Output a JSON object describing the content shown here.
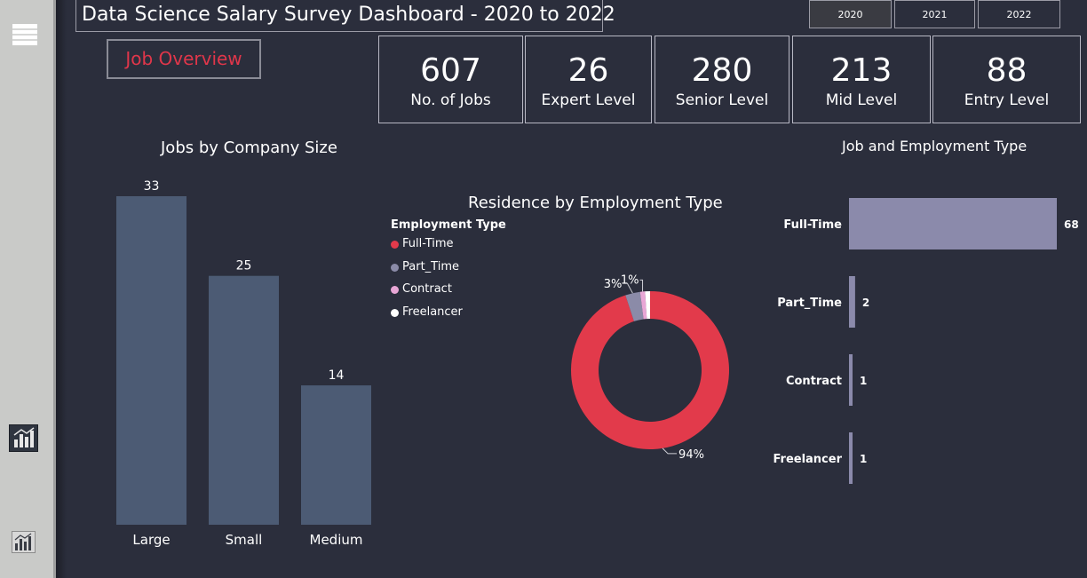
{
  "header": {
    "title": "Data Science Salary Survey Dashboard - 2020 to 2022",
    "years": [
      {
        "label": "2020",
        "active": true
      },
      {
        "label": "2021",
        "active": false
      },
      {
        "label": "2022",
        "active": false
      }
    ],
    "nav_button": "Job Overview"
  },
  "sidebar": {
    "icons": [
      "menu-icon",
      "report-page-icon",
      "report-page-icon"
    ]
  },
  "kpis": [
    {
      "value": "607",
      "label": "No. of Jobs"
    },
    {
      "value": "26",
      "label": "Expert Level"
    },
    {
      "value": "280",
      "label": "Senior Level"
    },
    {
      "value": "213",
      "label": "Mid Level"
    },
    {
      "value": "88",
      "label": "Entry Level"
    }
  ],
  "colors": {
    "bar": "#4c5b74",
    "full_time": "#e23a4b",
    "part_time": "#8b8ba8",
    "contract": "#e8a6d6",
    "freelancer": "#ffffff",
    "hbar": "#8b8aab",
    "accent": "#e0364a"
  },
  "chart_data": [
    {
      "type": "bar",
      "title": "Jobs by Company Size",
      "categories": [
        "Large",
        "Small",
        "Medium"
      ],
      "values": [
        33,
        25,
        14
      ],
      "ylim": [
        0,
        33
      ]
    },
    {
      "type": "pie",
      "title": "Residence by Employment Type",
      "legend_title": "Employment Type",
      "legend_position": "left",
      "categories": [
        "Full-Time",
        "Part_Time",
        "Contract",
        "Freelancer"
      ],
      "values": [
        94,
        3,
        1,
        1
      ],
      "labels": [
        "94%",
        "3%",
        "1%",
        ""
      ]
    },
    {
      "type": "bar",
      "orientation": "horizontal",
      "title": "Job and Employment Type",
      "categories": [
        "Full-Time",
        "Part_Time",
        "Contract",
        "Freelancer"
      ],
      "values": [
        68,
        2,
        1,
        1
      ],
      "xlim": [
        0,
        68
      ]
    }
  ]
}
